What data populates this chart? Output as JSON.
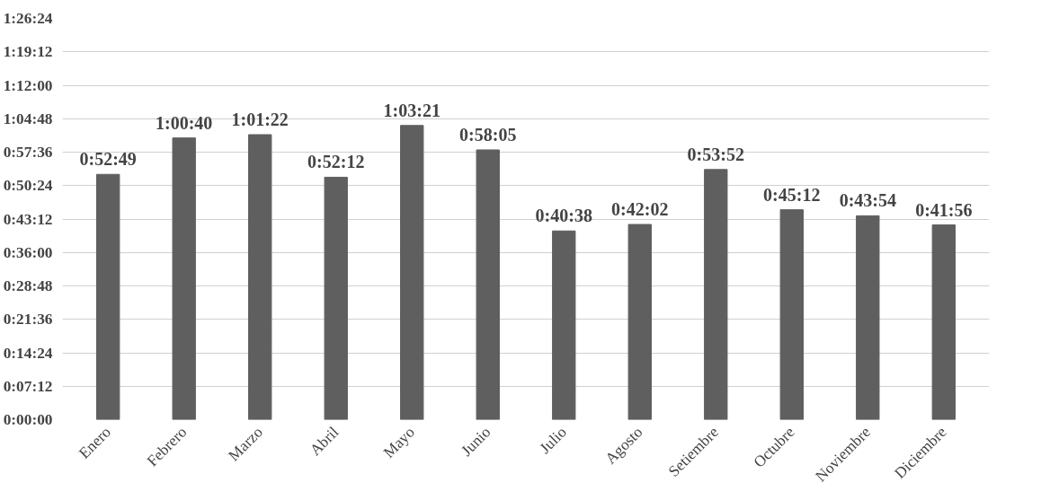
{
  "chart_data": {
    "type": "bar",
    "categories": [
      "Enero",
      "Febrero",
      "Marzo",
      "Abril",
      "Mayo",
      "Junio",
      "Julio",
      "Agosto",
      "Setiembre",
      "Octubre",
      "Noviembre",
      "Diciembre"
    ],
    "values": [
      3169,
      3640,
      3682,
      3132,
      3801,
      3485,
      2438,
      2522,
      3232,
      2712,
      2634,
      2516
    ],
    "value_labels": [
      "0:52:49",
      "1:00:40",
      "1:01:22",
      "0:52:12",
      "1:03:21",
      "0:58:05",
      "0:40:38",
      "0:42:02",
      "0:53:52",
      "0:45:12",
      "0:43:54",
      "0:41:56"
    ],
    "color": "#5f5f5f",
    "ylim": [
      0,
      5184
    ],
    "yticks": [
      {
        "value": 0,
        "label": "0:00:00"
      },
      {
        "value": 432,
        "label": "0:07:12"
      },
      {
        "value": 864,
        "label": "0:14:24"
      },
      {
        "value": 1296,
        "label": "0:21:36"
      },
      {
        "value": 1728,
        "label": "0:28:48"
      },
      {
        "value": 2160,
        "label": "0:36:00"
      },
      {
        "value": 2592,
        "label": "0:43:12"
      },
      {
        "value": 3024,
        "label": "0:50:24"
      },
      {
        "value": 3456,
        "label": "0:57:36"
      },
      {
        "value": 3888,
        "label": "1:04:48"
      },
      {
        "value": 4320,
        "label": "1:12:00"
      },
      {
        "value": 4752,
        "label": "1:19:12"
      },
      {
        "value": 5184,
        "label": "1:26:24"
      }
    ],
    "grid": "y"
  }
}
